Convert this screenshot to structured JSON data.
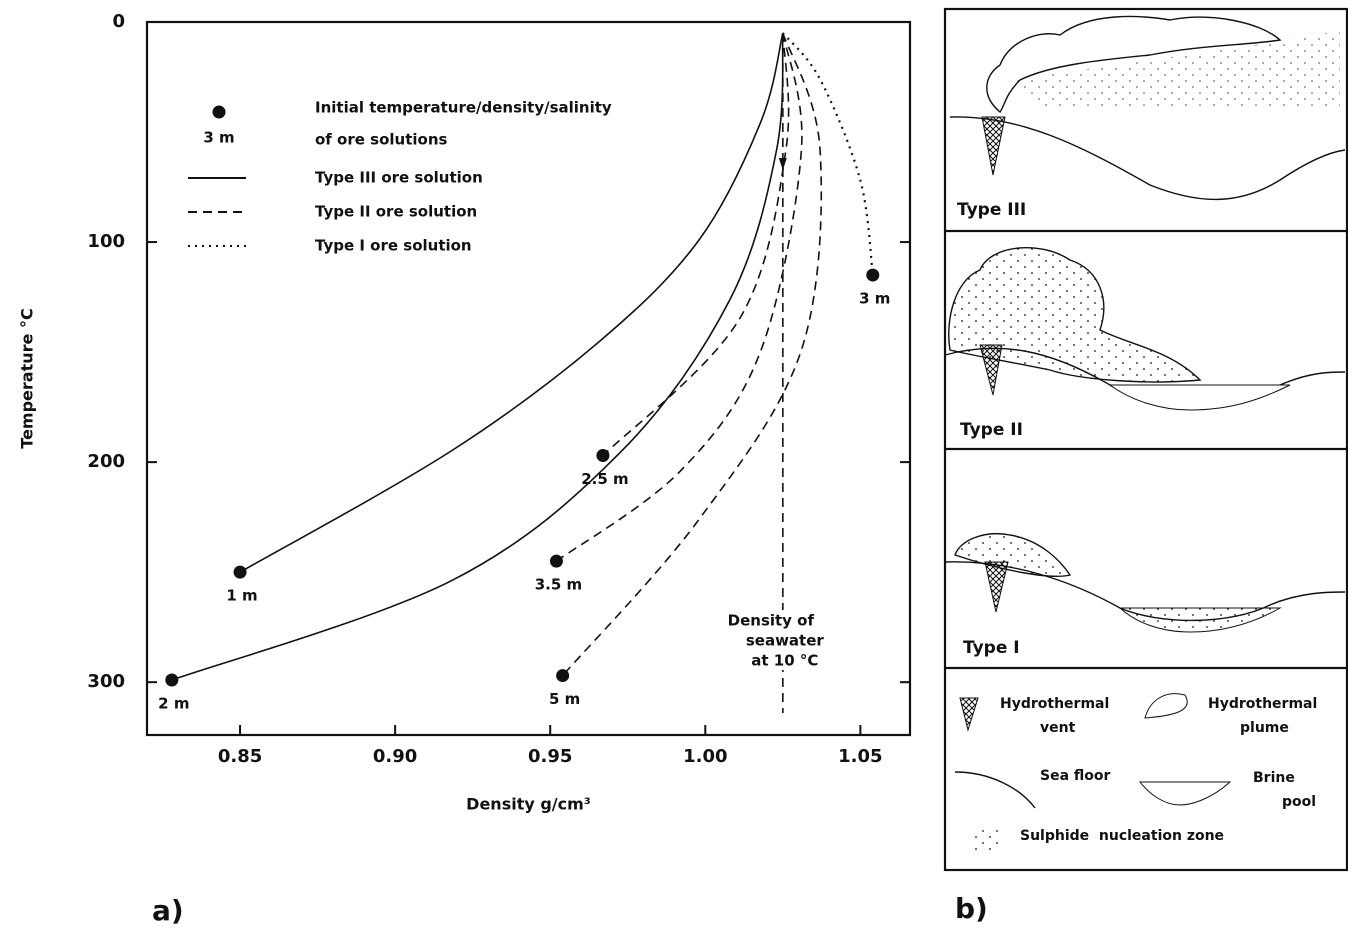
{
  "chart_data": {
    "type": "line",
    "x_label": "Density g/cm³",
    "y_label": "Temperature °C",
    "xlim": [
      0.82,
      1.066
    ],
    "ylim": [
      0,
      324
    ],
    "y_inverted": true,
    "xticks": [
      0.85,
      {
        "value": 0.9,
        "label": "0.90"
      },
      0.95,
      {
        "value": 1,
        "label": "1.00"
      },
      1.05
    ],
    "yticks": [
      0,
      100,
      200,
      300
    ],
    "color": "#111111",
    "series": [
      {
        "name": "Type III ore solution",
        "dash": "solid",
        "lines": [
          {
            "x": [
              1.025,
              1.018,
              0.998,
              0.966,
              0.918,
              0.85
            ],
            "y": [
              5,
              45,
              99,
              145,
              195,
              250
            ]
          },
          {
            "x": [
              1.025,
              1.023,
              1.008,
              0.973,
              0.918,
              0.828
            ],
            "y": [
              5,
              58,
              126,
              195,
              254,
              299
            ]
          }
        ]
      },
      {
        "name": "Type II ore solution",
        "dash": "dashed",
        "lines": [
          {
            "x": [
              1.025,
              1.026,
              1.011,
              0.967
            ],
            "y": [
              5,
              58,
              135,
              197
            ]
          },
          {
            "x": [
              1.025,
              1.031,
              1.018,
              0.992,
              0.952
            ],
            "y": [
              5,
              58,
              149,
              204,
              245
            ]
          },
          {
            "x": [
              1.025,
              1.037,
              1.031,
              0.998,
              0.954
            ],
            "y": [
              5,
              58,
              149,
              226,
              297
            ]
          }
        ]
      },
      {
        "name": "Type I ore solution",
        "dash": "dotted",
        "lines": [
          {
            "x": [
              1.025,
              1.037,
              1.05,
              1.054
            ],
            "y": [
              5,
              26,
              72,
              115
            ]
          }
        ]
      }
    ],
    "points": [
      {
        "label": "1 m",
        "x": 0.85,
        "y": 250
      },
      {
        "label": "2 m",
        "x": 0.828,
        "y": 299
      },
      {
        "label": "2.5 m",
        "x": 0.967,
        "y": 197
      },
      {
        "label": "3.5 m",
        "x": 0.952,
        "y": 245
      },
      {
        "label": "5 m",
        "x": 0.954,
        "y": 297
      },
      {
        "label": "3 m",
        "x": 1.054,
        "y": 115
      }
    ],
    "point_legend": {
      "marker_label": "3 m",
      "lines": [
        "Initial temperature/density/salinity",
        "of ore solutions"
      ]
    },
    "seawater": {
      "x": 1.025,
      "y": [
        5,
        314
      ],
      "lines": [
        "Density of",
        "seawater",
        "at 10 °C"
      ]
    },
    "panel_label": "a)"
  },
  "diagram": {
    "panel_label": "b)",
    "panels": [
      "Type III",
      "Type II",
      "Type I"
    ],
    "legend": {
      "vent": [
        "Hydrothermal",
        "vent"
      ],
      "plume": [
        "Hydrothermal",
        "plume"
      ],
      "floor": "Sea floor",
      "brine": [
        "Brine",
        "pool"
      ],
      "sulphide": "Sulphide  nucleation zone"
    }
  }
}
